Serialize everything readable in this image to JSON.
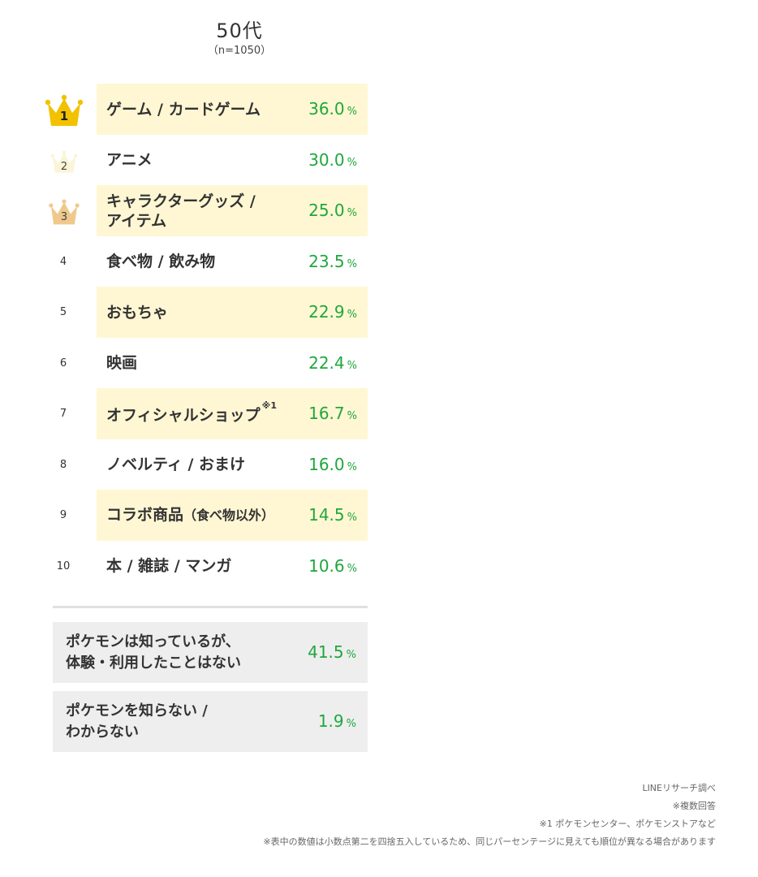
{
  "header": {
    "title": "50代",
    "subtitle": "（n=1050）"
  },
  "chart_data": {
    "type": "table",
    "title": "50代",
    "subtitle": "（n=1050）",
    "unit": "%",
    "rows": [
      {
        "rank": "1",
        "label": "ゲーム / カードゲーム",
        "value": 36.0,
        "display": "36.0"
      },
      {
        "rank": "2",
        "label": "アニメ",
        "value": 30.0,
        "display": "30.0"
      },
      {
        "rank": "3",
        "label": "キャラクターグッズ /\nアイテム",
        "value": 25.0,
        "display": "25.0"
      },
      {
        "rank": "4",
        "label": "食べ物 / 飲み物",
        "value": 23.5,
        "display": "23.5"
      },
      {
        "rank": "5",
        "label": "おもちゃ",
        "value": 22.9,
        "display": "22.9"
      },
      {
        "rank": "6",
        "label": "映画",
        "value": 22.4,
        "display": "22.4"
      },
      {
        "rank": "7",
        "label": "オフィシャルショップ",
        "note_mark": "※1",
        "value": 16.7,
        "display": "16.7"
      },
      {
        "rank": "8",
        "label": "ノベルティ / おまけ",
        "value": 16.0,
        "display": "16.0"
      },
      {
        "rank": "9",
        "label": "コラボ商品",
        "label_small": "（食べ物以外）",
        "value": 14.5,
        "display": "14.5"
      },
      {
        "rank": "10",
        "label": "本 / 雑誌 / マンガ",
        "value": 10.6,
        "display": "10.6"
      }
    ],
    "others": [
      {
        "label": "ポケモンは知っているが、\n体験・利用したことはない",
        "value": 41.5,
        "display": "41.5"
      },
      {
        "label": "ポケモンを知らない /\nわからない",
        "value": 1.9,
        "display": "1.9"
      }
    ]
  },
  "colors": {
    "highlight_band": "#fff7d3",
    "other_band": "#eeeeee",
    "percent": "#1fa73c",
    "crown_gold": "#f2c200",
    "crown_silver": "#fbf4d6",
    "crown_bronze": "#efc98c"
  },
  "icons": {
    "rank1": "gold-crown-icon",
    "rank2": "silver-crown-icon",
    "rank3": "bronze-crown-icon"
  },
  "notes": [
    "LINEリサーチ調べ",
    "※複数回答",
    "※1 ポケモンセンター、ポケモンストアなど",
    "※表中の数値は小数点第二を四捨五入しているため、同じパーセンテージに見えても順位が異なる場合があります"
  ]
}
